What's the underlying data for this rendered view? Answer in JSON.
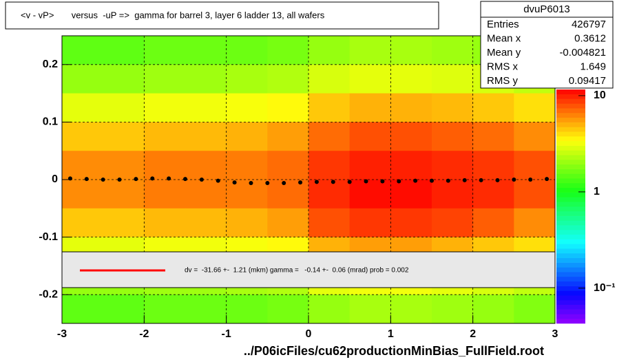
{
  "chart_data": {
    "type": "heatmap-profile",
    "title": "<v - vP>       versus  -uP =>  gamma for barrel 3, layer 6 ladder 13, all wafers",
    "x_label": "../P06icFiles/cu62productionMinBias_FullField.root",
    "xlim": [
      -3,
      3
    ],
    "ylim": [
      -0.25,
      0.25
    ],
    "xticks": [
      -3,
      -2,
      -1,
      0,
      1,
      2,
      3
    ],
    "yticks": [
      -0.2,
      -0.1,
      0,
      0.1,
      0.2
    ],
    "grid": true,
    "x": [
      -2.75,
      -2.25,
      -1.75,
      -1.25,
      -0.75,
      -0.25,
      0.25,
      0.75,
      1.25,
      1.75,
      2.25,
      2.75
    ],
    "y": [
      0.225,
      0.175,
      0.125,
      0.075,
      0.025,
      -0.025,
      -0.075,
      -0.125,
      -0.175,
      -0.225
    ],
    "z": [
      [
        1.5,
        1.5,
        1.6,
        1.6,
        1.6,
        1.7,
        2,
        2.2,
        2.2,
        2.1,
        2,
        1.8
      ],
      [
        2,
        2,
        2.1,
        2.1,
        2.2,
        2.3,
        2.8,
        3,
        3,
        2.9,
        2.8,
        2.5
      ],
      [
        3,
        3,
        3.2,
        3.2,
        3.3,
        3.5,
        4.5,
        5,
        5,
        4.8,
        4.5,
        4
      ],
      [
        4.5,
        4.5,
        4.8,
        4.8,
        5,
        5.5,
        7,
        8,
        8,
        7.5,
        7,
        6
      ],
      [
        6,
        6,
        6.5,
        6.5,
        6.5,
        7,
        9,
        10,
        10,
        9.5,
        9,
        8
      ],
      [
        6,
        6,
        6.5,
        6.5,
        6.5,
        7,
        9.5,
        11,
        11,
        10,
        9.5,
        8
      ],
      [
        4.5,
        4.5,
        4.8,
        4.8,
        5,
        5.5,
        8,
        9,
        9,
        8.5,
        7.5,
        6
      ],
      [
        3,
        3,
        3.2,
        3.2,
        3.3,
        3.5,
        5,
        5.5,
        5.5,
        5,
        4.5,
        4
      ],
      [
        2,
        2,
        2.1,
        2.1,
        2.2,
        2.3,
        3,
        3.2,
        3.2,
        3,
        2.8,
        2.5
      ],
      [
        1.5,
        1.5,
        1.6,
        1.6,
        1.6,
        1.7,
        2,
        2.2,
        2.2,
        2.1,
        2,
        1.8
      ]
    ],
    "zlim": [
      0.043,
      11.6
    ],
    "zticks": [
      {
        "value": 10,
        "label": "10"
      },
      1,
      {
        "value": 0.1,
        "label": "10⁻¹"
      }
    ],
    "profile": {
      "color": "#000000",
      "x": [
        -2.9,
        -2.7,
        -2.5,
        -2.3,
        -2.1,
        -1.9,
        -1.7,
        -1.5,
        -1.3,
        -1.1,
        -0.9,
        -0.7,
        -0.5,
        -0.3,
        -0.1,
        0.1,
        0.3,
        0.5,
        0.7,
        0.9,
        1.1,
        1.3,
        1.5,
        1.7,
        1.9,
        2.1,
        2.3,
        2.5,
        2.7,
        2.9
      ],
      "values": [
        0.002,
        0.001,
        0,
        0,
        0.001,
        0.002,
        0.002,
        0.001,
        0,
        -0.002,
        -0.005,
        -0.006,
        -0.006,
        -0.006,
        -0.005,
        -0.004,
        -0.004,
        -0.004,
        -0.003,
        -0.003,
        -0.003,
        -0.002,
        -0.002,
        -0.002,
        -0.001,
        -0.001,
        -0.001,
        0,
        0,
        0.001
      ]
    },
    "fit": {
      "color": "#ff0000",
      "text": "dv =  -31.66 +-  1.21 (mkm) gamma =   -0.14 +-  0.06 (mrad) prob = 0.002"
    },
    "stats": {
      "title": "dvuP6013",
      "rows": [
        [
          "Entries",
          "426797"
        ],
        [
          "Mean x",
          "0.3612"
        ],
        [
          "Mean y",
          "-0.004821"
        ],
        [
          "RMS x",
          "1.649"
        ],
        [
          "RMS y",
          "0.09417"
        ]
      ]
    }
  }
}
